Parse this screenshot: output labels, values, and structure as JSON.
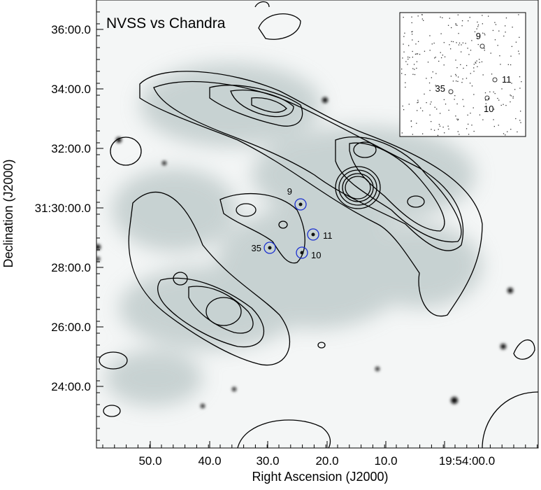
{
  "title": "NVSS vs Chandra",
  "x_axis": {
    "label": "Right Ascension (J2000)",
    "ticks": [
      "50.0",
      "40.0",
      "30.0",
      "20.0",
      "10.0",
      "19:54:00.0"
    ]
  },
  "y_axis": {
    "label": "Declination (J2000)",
    "ticks": [
      "36:00.0",
      "34:00.0",
      "32:00.0",
      "31:30:00.0",
      "28:00.0",
      "26:00.0",
      "24:00.0"
    ]
  },
  "sources": [
    {
      "label": "9"
    },
    {
      "label": "11"
    },
    {
      "label": "35"
    },
    {
      "label": "10"
    }
  ],
  "inset": {
    "sources": [
      {
        "label": "9"
      },
      {
        "label": "11"
      },
      {
        "label": "35"
      },
      {
        "label": "10"
      }
    ]
  }
}
